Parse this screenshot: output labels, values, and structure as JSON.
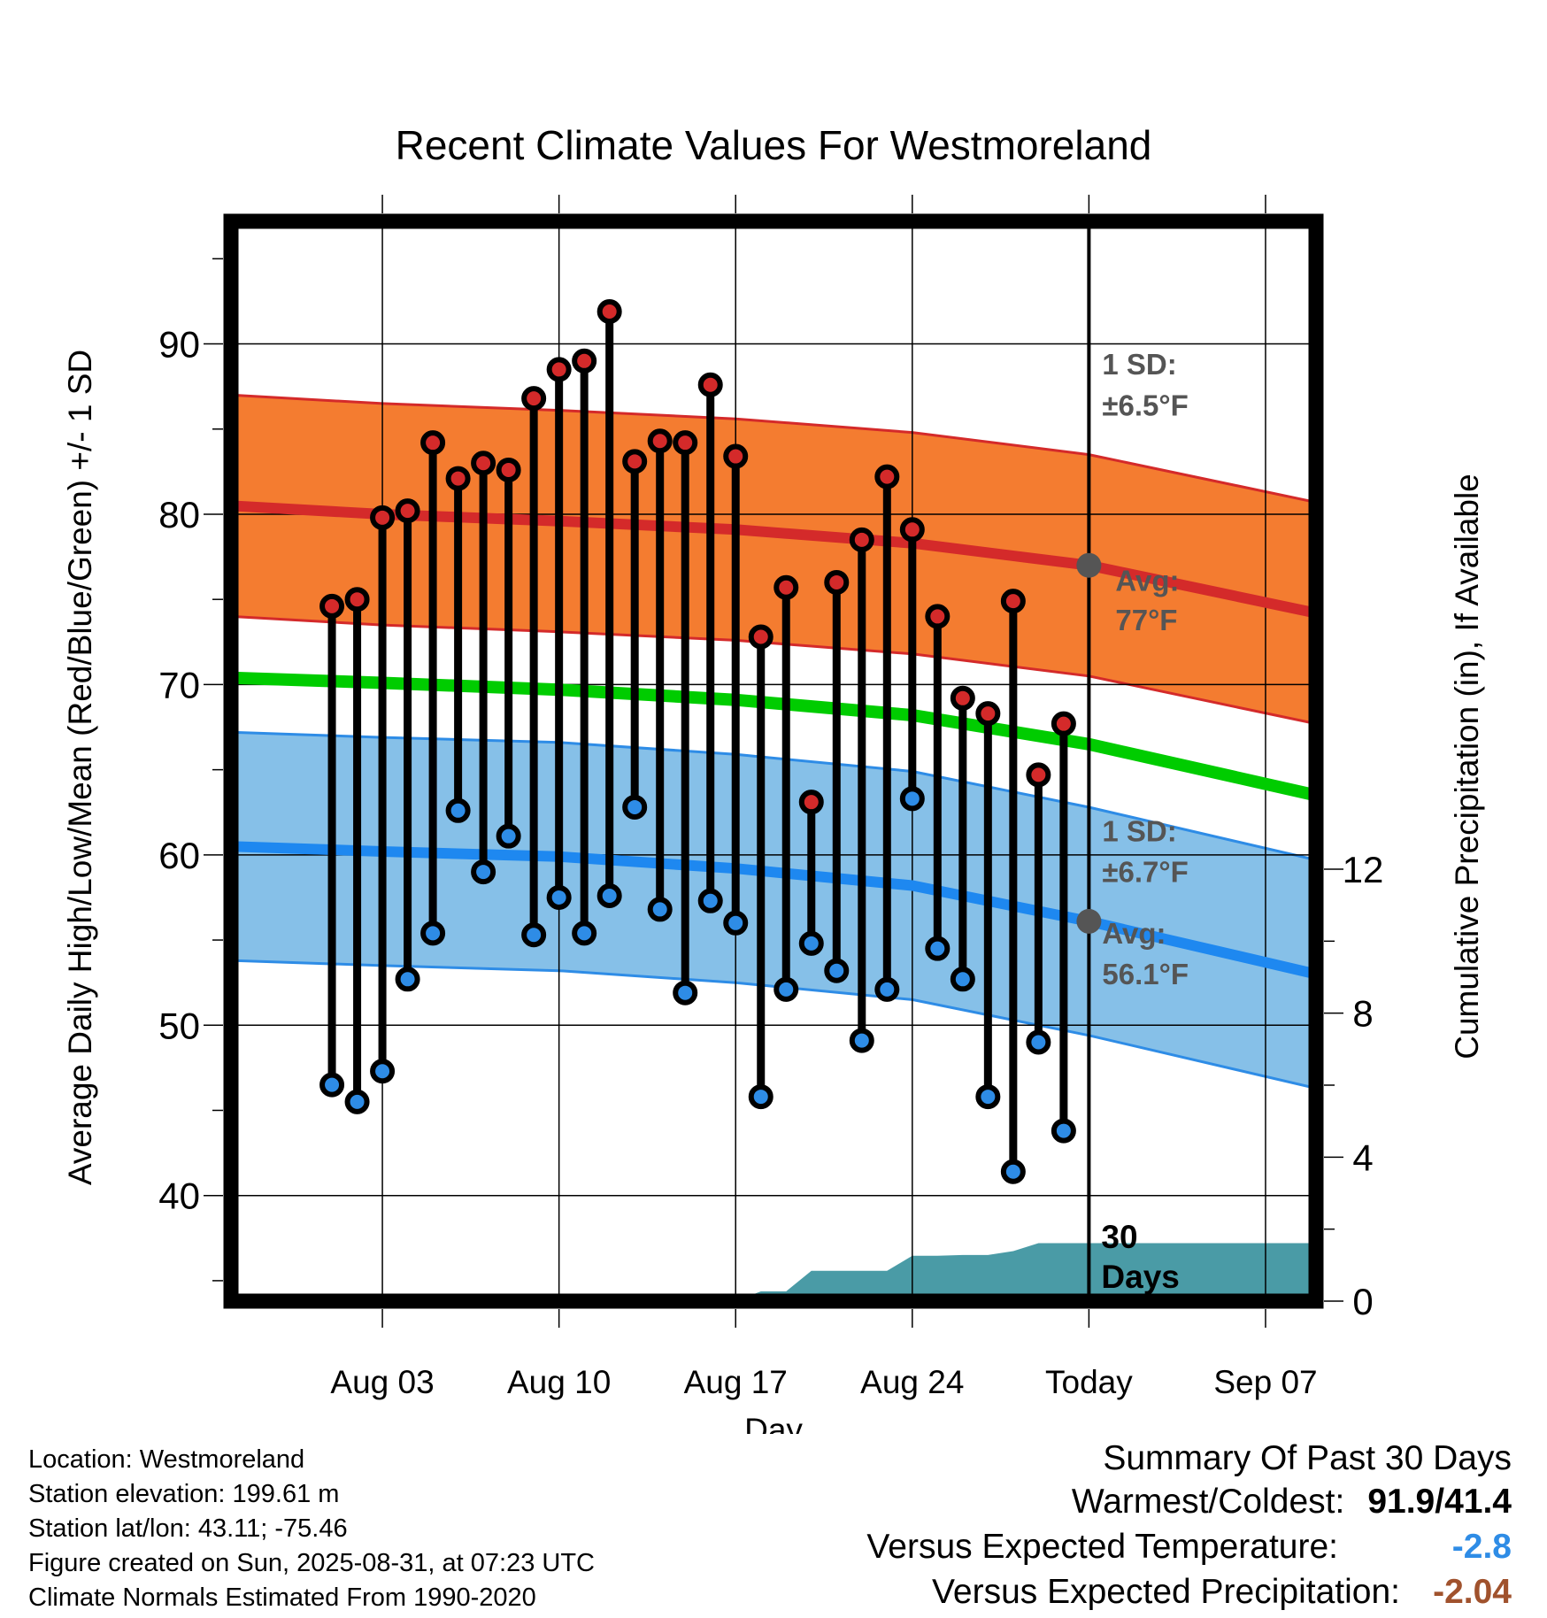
{
  "chart_data": {
    "type": "line",
    "title": "Recent Climate Values For Westmoreland",
    "xlabel": "Day",
    "ylabel": "Average Daily High/Low/Mean (Red/Blue/Green) +/- 1 SD",
    "y2label": "Cumulative Precipitation (in), If Available",
    "x_tick_labels": [
      "Aug 03",
      "Aug 10",
      "Aug 17",
      "Aug 24",
      "Today",
      "Sep 07"
    ],
    "y_ticks": [
      40,
      50,
      60,
      70,
      80,
      90
    ],
    "y2_ticks": [
      0,
      4,
      8,
      12
    ],
    "ylim": [
      33.8,
      97.2
    ],
    "y2lim": [
      0,
      30
    ],
    "xlim": [
      "2025-07-28",
      "2025-09-09"
    ],
    "grid": true,
    "today": "2025-08-31",
    "window_label": "30\nDays",
    "normals": {
      "x": [
        "2025-07-28",
        "2025-08-03",
        "2025-08-10",
        "2025-08-17",
        "2025-08-24",
        "2025-08-31",
        "2025-09-09"
      ],
      "avg_high": [
        80.5,
        80.0,
        79.6,
        79.1,
        78.3,
        77.0,
        74.2
      ],
      "high_sd": 6.5,
      "avg_low": [
        60.5,
        60.2,
        59.9,
        59.2,
        58.2,
        56.1,
        53.0
      ],
      "low_sd": 6.7,
      "avg_mean": [
        70.4,
        70.1,
        69.7,
        69.1,
        68.2,
        66.5,
        63.5
      ]
    },
    "high_annotation": {
      "sd_label": "1 SD:",
      "sd_value": "±6.5°F",
      "avg_label": "Avg:",
      "avg_value": "77°F",
      "avg": 77.0
    },
    "low_annotation": {
      "sd_label": "1 SD:",
      "sd_value": "±6.7°F",
      "avg_label": "Avg:",
      "avg_value": "56.1°F",
      "avg": 56.1
    },
    "series": [
      {
        "name": "High",
        "color": "#d42a2a",
        "dates": [
          "2025-08-01",
          "2025-08-02",
          "2025-08-03",
          "2025-08-04",
          "2025-08-05",
          "2025-08-06",
          "2025-08-07",
          "2025-08-08",
          "2025-08-09",
          "2025-08-10",
          "2025-08-11",
          "2025-08-12",
          "2025-08-13",
          "2025-08-14",
          "2025-08-15",
          "2025-08-16",
          "2025-08-17",
          "2025-08-18",
          "2025-08-19",
          "2025-08-20",
          "2025-08-21",
          "2025-08-22",
          "2025-08-23",
          "2025-08-24",
          "2025-08-25",
          "2025-08-26",
          "2025-08-27",
          "2025-08-28",
          "2025-08-29",
          "2025-08-30"
        ],
        "values": [
          74.6,
          75.0,
          79.8,
          80.2,
          84.2,
          82.1,
          83.0,
          82.6,
          86.8,
          88.5,
          89.0,
          91.9,
          83.1,
          84.3,
          84.2,
          87.6,
          83.4,
          72.8,
          75.7,
          63.1,
          76.0,
          78.5,
          82.2,
          79.1,
          74.0,
          69.2,
          68.3,
          74.9,
          64.7,
          67.7
        ]
      },
      {
        "name": "Low",
        "color": "#2e8ce6",
        "dates": [
          "2025-08-01",
          "2025-08-02",
          "2025-08-03",
          "2025-08-04",
          "2025-08-05",
          "2025-08-06",
          "2025-08-07",
          "2025-08-08",
          "2025-08-09",
          "2025-08-10",
          "2025-08-11",
          "2025-08-12",
          "2025-08-13",
          "2025-08-14",
          "2025-08-15",
          "2025-08-16",
          "2025-08-17",
          "2025-08-18",
          "2025-08-19",
          "2025-08-20",
          "2025-08-21",
          "2025-08-22",
          "2025-08-23",
          "2025-08-24",
          "2025-08-25",
          "2025-08-26",
          "2025-08-27",
          "2025-08-28",
          "2025-08-29",
          "2025-08-30"
        ],
        "values": [
          46.5,
          45.5,
          47.3,
          52.7,
          55.4,
          62.6,
          59.0,
          61.1,
          55.3,
          57.5,
          55.4,
          57.6,
          62.8,
          56.8,
          51.9,
          57.3,
          56.0,
          45.8,
          52.1,
          54.8,
          53.2,
          49.1,
          52.1,
          63.3,
          54.5,
          52.7,
          45.8,
          41.4,
          49.0,
          43.8
        ]
      },
      {
        "name": "Cumulative Precipitation",
        "color": "#4a9ba6",
        "dates": [
          "2025-08-15",
          "2025-08-16",
          "2025-08-17",
          "2025-08-18",
          "2025-08-19",
          "2025-08-20",
          "2025-08-21",
          "2025-08-22",
          "2025-08-23",
          "2025-08-24",
          "2025-08-25",
          "2025-08-26",
          "2025-08-27",
          "2025-08-28",
          "2025-08-29",
          "2025-08-30",
          "2025-08-31",
          "2025-09-09"
        ],
        "values": [
          0.0,
          0.0,
          0.0,
          0.27,
          0.27,
          0.84,
          0.84,
          0.84,
          0.84,
          1.26,
          1.26,
          1.28,
          1.28,
          1.39,
          1.61,
          1.61,
          1.61,
          1.61
        ]
      }
    ]
  },
  "footer": {
    "location": "Location: Westmoreland",
    "elevation": "Station elevation: 199.61 m",
    "latlon": "Station lat/lon: 43.11; -75.46",
    "created": "Figure created on Sun, 2025-08-31, at 07:23 UTC",
    "normals": "Climate Normals Estimated From 1990-2020"
  },
  "summary": {
    "title": "Summary Of Past 30 Days",
    "warm_cold_label": "Warmest/Coldest:",
    "warm_cold_value": "91.9/41.4",
    "temp_label": "Versus Expected Temperature:",
    "temp_value": "-2.8",
    "temp_color": "#2e8ce6",
    "precip_label": "Versus Expected Precipitation:",
    "precip_value": "-2.04",
    "precip_color": "#a0522d"
  }
}
